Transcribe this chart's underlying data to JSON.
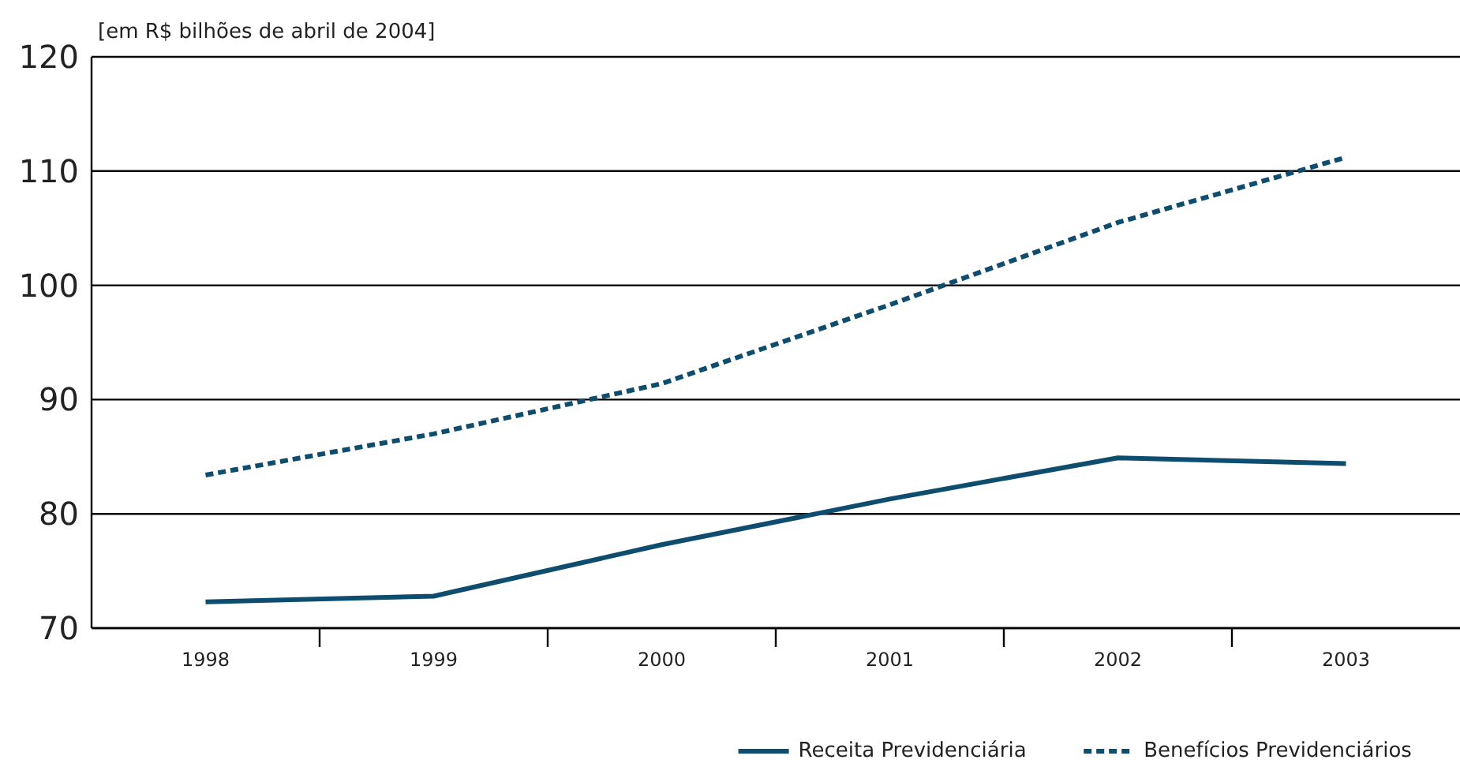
{
  "chart_data": {
    "type": "line",
    "ylabel": "[em R$ bilhões de abril de 2004]",
    "categories": [
      "1998",
      "1999",
      "2000",
      "2001",
      "2002",
      "2003"
    ],
    "series": [
      {
        "name": "Receita Previdenciária",
        "color": "#0e4d6e",
        "line_style": "solid",
        "values": [
          72.3,
          72.8,
          77.3,
          81.3,
          84.9,
          84.4
        ]
      },
      {
        "name": "Benefícios Previdenciários",
        "color": "#0e4d6e",
        "line_style": "dashed",
        "values": [
          83.4,
          87.0,
          91.4,
          98.3,
          105.5,
          111.2
        ]
      }
    ],
    "ylim": [
      70,
      120
    ],
    "yticks": [
      70,
      80,
      90,
      100,
      110,
      120
    ],
    "grid": "y",
    "legend": "bottom right",
    "marker": "none"
  }
}
